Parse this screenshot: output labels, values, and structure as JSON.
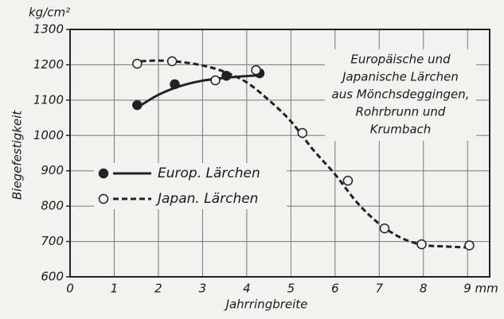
{
  "chart_data": {
    "type": "scatter",
    "y_unit": "kg/cm²",
    "ylabel": "Biegefestigkeit",
    "xlabel": "Jahrringbreite",
    "annotation": [
      "Europäische und",
      "Japanische Lärchen",
      "aus Mönchsdeggingen,",
      "Rohrbrunn und",
      "Krumbach"
    ],
    "xlim": [
      0,
      9.5
    ],
    "ylim": [
      600,
      1300
    ],
    "xticks": [
      0,
      1,
      2,
      3,
      4,
      5,
      6,
      7,
      8,
      {
        "value": 9,
        "label": "9 mm"
      }
    ],
    "yticks": [
      600,
      700,
      800,
      900,
      1000,
      1100,
      1200,
      1300
    ],
    "grid": true,
    "series": [
      {
        "name": "Europ. Lärchen",
        "color": "#222222",
        "marker": "filled",
        "dash": false,
        "x": [
          1.52,
          2.37,
          3.54,
          4.29
        ],
        "values": [
          1086,
          1145,
          1169,
          1176
        ],
        "fit_x": [
          1.6,
          2,
          2.5,
          3,
          3.5,
          4,
          4.3
        ],
        "fit_y": [
          1085,
          1115,
          1140,
          1155,
          1163,
          1168,
          1170
        ]
      },
      {
        "name": "Japan. Lärchen",
        "color": "#222222",
        "marker": "open",
        "dash": true,
        "x": [
          1.52,
          2.31,
          3.29,
          4.21,
          5.26,
          6.29,
          7.12,
          7.96,
          9.04
        ],
        "values": [
          1203,
          1210,
          1156,
          1185,
          1007,
          872,
          737,
          692,
          689
        ],
        "fit_x": [
          1.6,
          2,
          2.5,
          3,
          3.5,
          4,
          4.5,
          5,
          5.5,
          6,
          6.5,
          7,
          7.5,
          8,
          8.5,
          9
        ],
        "fit_y": [
          1210,
          1212,
          1208,
          1198,
          1180,
          1150,
          1100,
          1040,
          960,
          890,
          810,
          750,
          710,
          690,
          686,
          683
        ]
      }
    ]
  }
}
